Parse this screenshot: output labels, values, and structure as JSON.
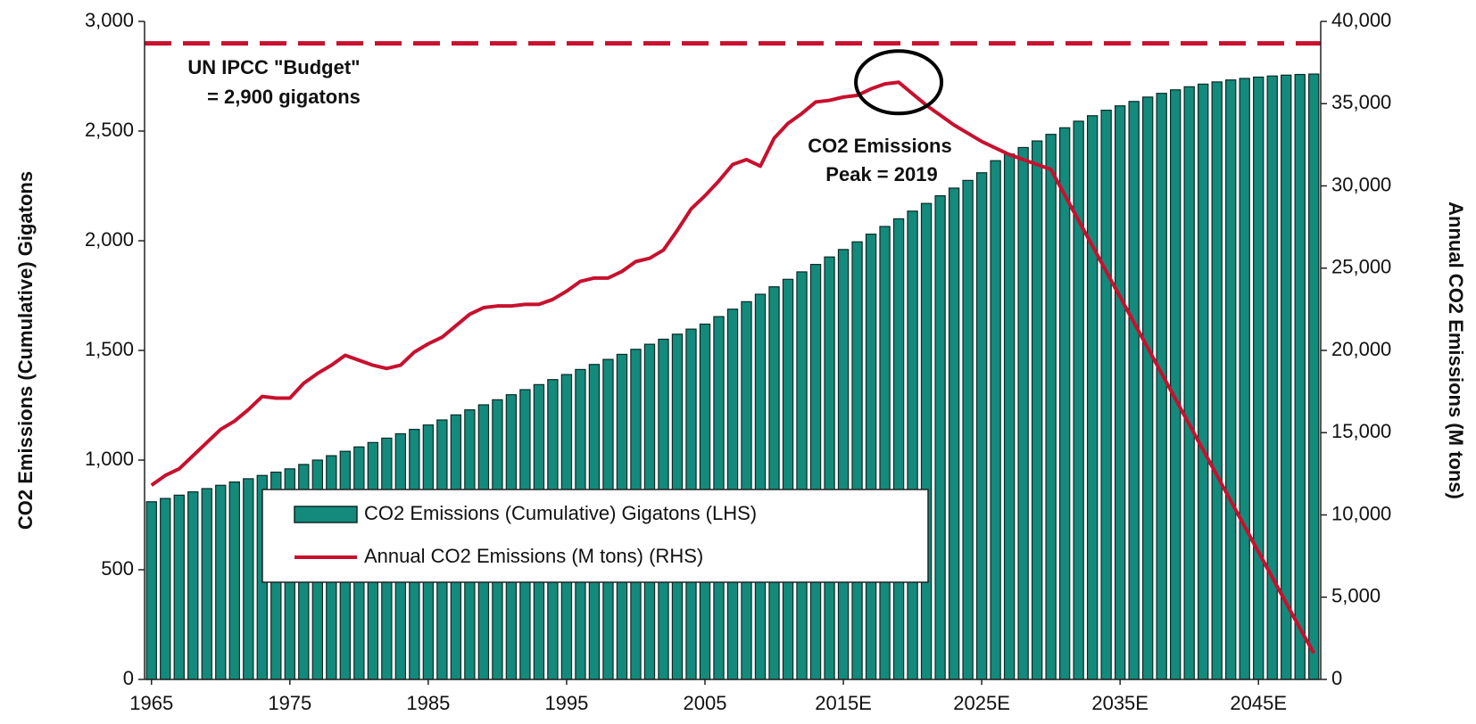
{
  "chart_data": {
    "type": "bar",
    "categories": [
      "1965",
      null,
      null,
      null,
      null,
      null,
      null,
      null,
      null,
      null,
      "1975",
      null,
      null,
      null,
      null,
      null,
      null,
      null,
      null,
      null,
      "1985",
      null,
      null,
      null,
      null,
      null,
      null,
      null,
      null,
      null,
      "1995",
      null,
      null,
      null,
      null,
      null,
      null,
      null,
      null,
      null,
      "2005",
      null,
      null,
      null,
      null,
      null,
      null,
      null,
      null,
      null,
      "2015E",
      null,
      null,
      null,
      null,
      null,
      null,
      null,
      null,
      null,
      "2025E",
      null,
      null,
      null,
      null,
      null,
      null,
      null,
      null,
      null,
      "2035E",
      null,
      null,
      null,
      null,
      null,
      null,
      null,
      null,
      null,
      "2045E",
      null,
      null,
      null,
      null
    ],
    "series": [
      {
        "name": "CO2 Emissions (Cumulative) Gigatons (LHS)",
        "type": "bar",
        "color": "#138a7b",
        "values": [
          810,
          825,
          840,
          855,
          870,
          885,
          900,
          915,
          930,
          945,
          960,
          980,
          1000,
          1020,
          1040,
          1060,
          1080,
          1100,
          1120,
          1140,
          1160,
          1183,
          1206,
          1229,
          1252,
          1275,
          1298,
          1321,
          1344,
          1367,
          1390,
          1413,
          1436,
          1459,
          1482,
          1505,
          1528,
          1551,
          1574,
          1597,
          1620,
          1654,
          1688,
          1722,
          1756,
          1790,
          1824,
          1858,
          1892,
          1926,
          1960,
          1995,
          2030,
          2065,
          2100,
          2135,
          2170,
          2205,
          2240,
          2275,
          2310,
          2365,
          2395,
          2425,
          2455,
          2485,
          2515,
          2545,
          2570,
          2595,
          2615,
          2635,
          2655,
          2672,
          2688,
          2702,
          2714,
          2724,
          2733,
          2740,
          2746,
          2751,
          2755,
          2758,
          2760
        ]
      },
      {
        "name": "Annual CO2 Emissions (M tons) (RHS)",
        "type": "line",
        "axis": "y2",
        "color": "#c8102e",
        "values": [
          11800,
          12400,
          12800,
          13600,
          14400,
          15200,
          15700,
          16400,
          17200,
          17100,
          17100,
          18000,
          18600,
          19100,
          19700,
          19400,
          19100,
          18900,
          19100,
          19900,
          20400,
          20800,
          21500,
          22200,
          22600,
          22700,
          22700,
          22800,
          22800,
          23100,
          23600,
          24200,
          24400,
          24400,
          24800,
          25400,
          25600,
          26100,
          27300,
          28600,
          29400,
          30300,
          31300,
          31600,
          31200,
          32900,
          33800,
          34400,
          35100,
          35200,
          35400,
          35500,
          35900,
          36200,
          36300,
          35600,
          34900,
          34300,
          33700,
          33200,
          32700,
          32300,
          31900,
          31600,
          31300,
          31000,
          29450,
          27900,
          26350,
          24800,
          23250,
          21700,
          20150,
          18600,
          17050,
          15500,
          13950,
          12400,
          10850,
          9300,
          7750,
          6200,
          4650,
          3100,
          1600
        ]
      }
    ],
    "ylabel": "CO2 Emissions (Cumulative) Gigatons",
    "y2label": "Annual CO2 Emissions (M tons)",
    "ylim": [
      0,
      3000
    ],
    "yticks": [
      0,
      500,
      {
        "value": 1000,
        "label": "1,000"
      },
      {
        "value": 1500,
        "label": "1,500"
      },
      {
        "value": 2000,
        "label": "2,000"
      },
      {
        "value": 2500,
        "label": "2,500"
      },
      {
        "value": 3000,
        "label": "3,000"
      }
    ],
    "y2lim": [
      0,
      40000
    ],
    "y2ticks": [
      0,
      {
        "value": 5000,
        "label": "5,000"
      },
      {
        "value": 10000,
        "label": "10,000"
      },
      {
        "value": 15000,
        "label": "15,000"
      },
      {
        "value": 20000,
        "label": "20,000"
      },
      {
        "value": 25000,
        "label": "25,000"
      },
      {
        "value": 30000,
        "label": "30,000"
      },
      {
        "value": 35000,
        "label": "35,000"
      },
      {
        "value": 40000,
        "label": "40,000"
      }
    ],
    "reference_line": {
      "value": 2900,
      "color": "#c8102e",
      "style": "dashed"
    },
    "annotations": [
      "UN IPCC \"Budget\"",
      "= 2,900 gigatons",
      "CO2 Emissions",
      "Peak = 2019"
    ],
    "legend": "lower center",
    "grid": false
  }
}
